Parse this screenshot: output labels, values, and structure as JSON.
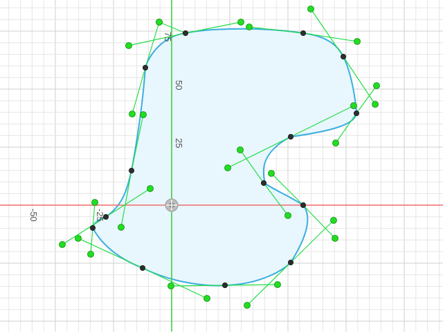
{
  "canvas": {
    "title": "",
    "colors": {
      "background": "#ffffff",
      "grid_minor": "#e6e6e6",
      "grid_major": "#cfcfcf",
      "x_axis": "#f26b6b",
      "y_axis": "#33cc33",
      "shape_fill": "#e8f6fd",
      "shape_stroke": "#3aaee0",
      "handle_line": "#22dd44",
      "handle_point": "#22dd22",
      "anchor_point": "#2e2e2e"
    },
    "axis_labels": {
      "x_neg50": "-50",
      "x_neg25": "-25",
      "y_25": "25",
      "y_50": "50",
      "y_75": "75"
    },
    "origin_marker": "origin-handle-icon",
    "shape": {
      "name": "closed-bezier-spline",
      "anchor_count": 13,
      "handle_count": 26
    }
  }
}
